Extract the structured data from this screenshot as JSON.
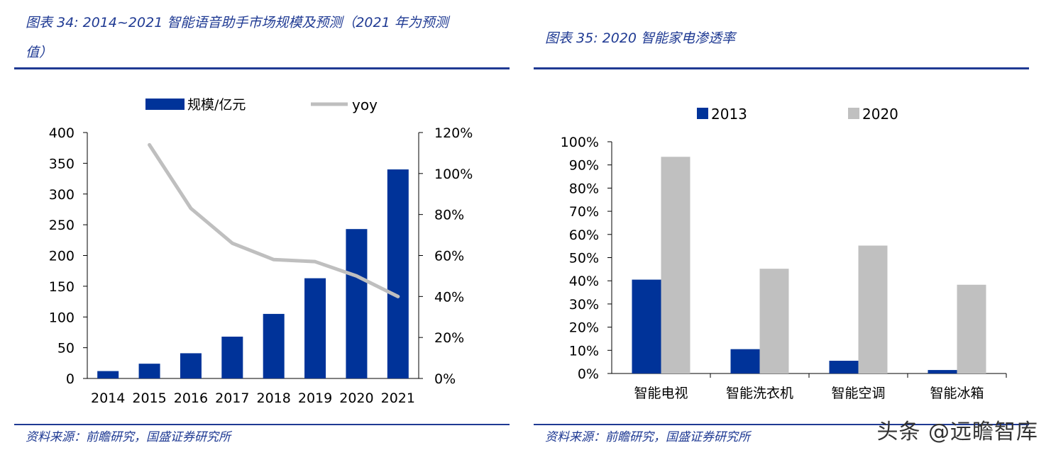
{
  "left": {
    "title_line1": "图表 34:  2014~2021 智能语音助手市场规模及预测（2021 年为预测",
    "title_line2": "值）",
    "source": "资料来源：前瞻研究，国盛证券研究所"
  },
  "right": {
    "title": "图表 35:  2020 智能家电渗透率",
    "source": "资料来源：前瞻研究，国盛证券研究所"
  },
  "watermark": "头条 @远瞻智库",
  "colors": {
    "navy": "#003399",
    "gray": "#c0c0c0",
    "line": "#bfbfbf",
    "title": "#1f3a93"
  },
  "chart_data": [
    {
      "type": "bar+line",
      "categories": [
        "2014",
        "2015",
        "2016",
        "2017",
        "2018",
        "2019",
        "2020",
        "2021"
      ],
      "series": [
        {
          "name": "规模/亿元",
          "type": "bar",
          "axis": "left",
          "values": [
            12,
            24,
            41,
            68,
            105,
            163,
            243,
            340
          ]
        },
        {
          "name": "yoy",
          "type": "line",
          "axis": "right",
          "values": [
            null,
            1.14,
            0.83,
            0.66,
            0.58,
            0.57,
            0.5,
            0.4
          ]
        }
      ],
      "ylim_left": [
        0,
        400
      ],
      "yticks_left": [
        "0",
        "50",
        "100",
        "150",
        "200",
        "250",
        "300",
        "350",
        "400"
      ],
      "ylim_right": [
        0,
        1.2
      ],
      "yticks_right": [
        "0%",
        "20%",
        "40%",
        "60%",
        "80%",
        "100%",
        "120%"
      ],
      "legend": "top"
    },
    {
      "type": "bar",
      "categories": [
        "智能电视",
        "智能洗衣机",
        "智能空调",
        "智能冰箱"
      ],
      "series": [
        {
          "name": "2013",
          "values": [
            0.405,
            0.105,
            0.055,
            0.015
          ]
        },
        {
          "name": "2020",
          "values": [
            0.935,
            0.452,
            0.552,
            0.383
          ]
        }
      ],
      "ylim": [
        0,
        1.0
      ],
      "yticks": [
        "0%",
        "10%",
        "20%",
        "30%",
        "40%",
        "50%",
        "60%",
        "70%",
        "80%",
        "90%",
        "100%"
      ],
      "legend": "top"
    }
  ]
}
